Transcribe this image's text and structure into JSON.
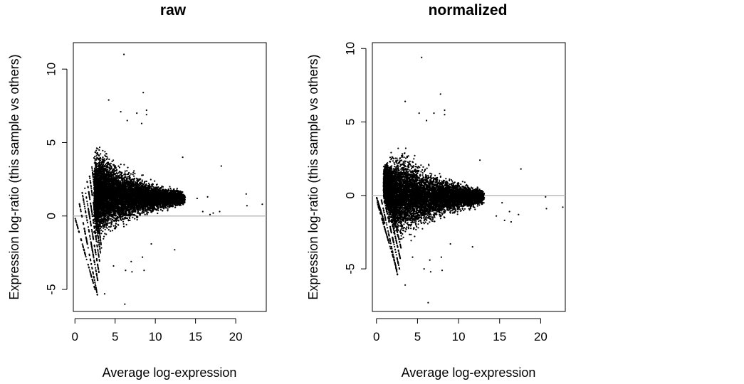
{
  "colors": {
    "points": "#000000",
    "reference_line": "#bbbbbb",
    "background": "#ffffff"
  },
  "chart_data": [
    {
      "type": "scatter",
      "title": "raw",
      "xlabel": "Average log-expression",
      "ylabel": "Expression log-ratio (this sample vs others)",
      "xlim": [
        -0.2,
        23.8
      ],
      "ylim": [
        -6.5,
        11.8
      ],
      "xticks": [
        0,
        5,
        10,
        15,
        20
      ],
      "yticks": [
        -5,
        0,
        5,
        10
      ],
      "reference_line_y": 0,
      "grid": false,
      "legend": "none",
      "density_cloud": [
        {
          "x": 2.5,
          "y": 1.55,
          "half_width": 2.2
        },
        {
          "x": 3,
          "y": 1.5,
          "half_width": 2.4
        },
        {
          "x": 4,
          "y": 1.45,
          "half_width": 2.1
        },
        {
          "x": 5,
          "y": 1.4,
          "half_width": 1.75
        },
        {
          "x": 6,
          "y": 1.35,
          "half_width": 1.5
        },
        {
          "x": 7,
          "y": 1.3,
          "half_width": 1.3
        },
        {
          "x": 8,
          "y": 1.3,
          "half_width": 1.1
        },
        {
          "x": 9,
          "y": 1.25,
          "half_width": 0.95
        },
        {
          "x": 10,
          "y": 1.2,
          "half_width": 0.8
        },
        {
          "x": 11,
          "y": 1.2,
          "half_width": 0.65
        },
        {
          "x": 12,
          "y": 1.2,
          "half_width": 0.55
        },
        {
          "x": 13,
          "y": 1.2,
          "half_width": 0.45
        },
        {
          "x": 13.6,
          "y": 1.2,
          "half_width": 0.3
        }
      ],
      "low_count_streaks": [
        {
          "x": [
            0,
            2.5
          ],
          "y": [
            -0.1,
            -5.0
          ]
        },
        {
          "x": [
            0.5,
            2.8
          ],
          "y": [
            1.0,
            -5.4
          ]
        },
        {
          "x": [
            0.9,
            2.9
          ],
          "y": [
            1.6,
            -4.6
          ]
        },
        {
          "x": [
            1.2,
            3.0
          ],
          "y": [
            2.0,
            -3.9
          ]
        },
        {
          "x": [
            1.5,
            3.1
          ],
          "y": [
            2.4,
            -3.2
          ]
        },
        {
          "x": [
            1.8,
            3.2
          ],
          "y": [
            2.8,
            -2.6
          ]
        },
        {
          "x": [
            2.1,
            3.3
          ],
          "y": [
            3.4,
            -2.2
          ]
        }
      ],
      "outliers": [
        {
          "x": 6.1,
          "y": 11.0
        },
        {
          "x": 8.5,
          "y": 8.4
        },
        {
          "x": 4.2,
          "y": 7.9
        },
        {
          "x": 8.9,
          "y": 7.2
        },
        {
          "x": 8.9,
          "y": 6.9
        },
        {
          "x": 5.7,
          "y": 7.1
        },
        {
          "x": 7.7,
          "y": 7.0
        },
        {
          "x": 6.5,
          "y": 6.5
        },
        {
          "x": 8.3,
          "y": 6.3
        },
        {
          "x": 13.4,
          "y": 4.0
        },
        {
          "x": 18.2,
          "y": 3.4
        },
        {
          "x": 21.3,
          "y": 1.5
        },
        {
          "x": 23.3,
          "y": 0.8
        },
        {
          "x": 21.4,
          "y": 0.7
        },
        {
          "x": 15.2,
          "y": 1.2
        },
        {
          "x": 16.5,
          "y": 1.3
        },
        {
          "x": 15.9,
          "y": 0.3
        },
        {
          "x": 16.8,
          "y": 0.1
        },
        {
          "x": 18.0,
          "y": 0.3
        },
        {
          "x": 17.2,
          "y": 0.2
        },
        {
          "x": 12.4,
          "y": -2.3
        },
        {
          "x": 8.4,
          "y": -2.8
        },
        {
          "x": 7.0,
          "y": -3.1
        },
        {
          "x": 6.3,
          "y": -3.7
        },
        {
          "x": 7.1,
          "y": -3.8
        },
        {
          "x": 8.6,
          "y": -3.7
        },
        {
          "x": 6.2,
          "y": -6.0
        },
        {
          "x": 3.7,
          "y": -5.3
        },
        {
          "x": 4.8,
          "y": -3.4
        },
        {
          "x": 9.5,
          "y": -1.9
        }
      ]
    },
    {
      "type": "scatter",
      "title": "normalized",
      "xlabel": "Average log-expression",
      "ylabel": "Expression log-ratio (this sample vs others)",
      "xlim": [
        -0.5,
        23.0
      ],
      "ylim": [
        -7.9,
        10.4
      ],
      "xticks": [
        0,
        5,
        10,
        15,
        20
      ],
      "yticks": [
        -5,
        0,
        5,
        10
      ],
      "reference_line_y": 0,
      "grid": false,
      "legend": "none",
      "density_cloud": [
        {
          "x": 1,
          "y": 0.8,
          "half_width": 1.0
        },
        {
          "x": 1.5,
          "y": 0.4,
          "half_width": 1.6
        },
        {
          "x": 2,
          "y": 0.1,
          "half_width": 2.1
        },
        {
          "x": 3,
          "y": 0.0,
          "half_width": 2.35
        },
        {
          "x": 4,
          "y": -0.05,
          "half_width": 2.1
        },
        {
          "x": 5,
          "y": -0.1,
          "half_width": 1.8
        },
        {
          "x": 6,
          "y": -0.1,
          "half_width": 1.55
        },
        {
          "x": 7,
          "y": -0.1,
          "half_width": 1.3
        },
        {
          "x": 8,
          "y": -0.1,
          "half_width": 1.1
        },
        {
          "x": 9,
          "y": -0.1,
          "half_width": 0.95
        },
        {
          "x": 10,
          "y": -0.1,
          "half_width": 0.8
        },
        {
          "x": 11,
          "y": -0.1,
          "half_width": 0.65
        },
        {
          "x": 12,
          "y": -0.1,
          "half_width": 0.55
        },
        {
          "x": 13,
          "y": -0.1,
          "half_width": 0.4
        }
      ],
      "low_count_streaks": [
        {
          "x": [
            0,
            1.0
          ],
          "y": [
            -0.1,
            -1.9
          ]
        },
        {
          "x": [
            0.1,
            2.5
          ],
          "y": [
            -0.5,
            -5.1
          ]
        },
        {
          "x": [
            0.6,
            2.6
          ],
          "y": [
            -0.3,
            -5.5
          ]
        },
        {
          "x": [
            0.9,
            2.8
          ],
          "y": [
            -0.2,
            -5.0
          ]
        },
        {
          "x": [
            1.2,
            2.9
          ],
          "y": [
            -0.1,
            -4.3
          ]
        },
        {
          "x": [
            1.5,
            3.0
          ],
          "y": [
            0.0,
            -3.6
          ]
        }
      ],
      "outliers": [
        {
          "x": 5.5,
          "y": 9.4
        },
        {
          "x": 7.8,
          "y": 6.9
        },
        {
          "x": 3.5,
          "y": 6.4
        },
        {
          "x": 8.3,
          "y": 5.8
        },
        {
          "x": 8.3,
          "y": 5.5
        },
        {
          "x": 5.2,
          "y": 5.6
        },
        {
          "x": 7.0,
          "y": 5.6
        },
        {
          "x": 6.1,
          "y": 5.1
        },
        {
          "x": 12.6,
          "y": 2.4
        },
        {
          "x": 17.6,
          "y": 1.8
        },
        {
          "x": 20.6,
          "y": -0.1
        },
        {
          "x": 22.7,
          "y": -0.8
        },
        {
          "x": 20.7,
          "y": -0.9
        },
        {
          "x": 15.3,
          "y": -0.5
        },
        {
          "x": 16.2,
          "y": -1.1
        },
        {
          "x": 15.6,
          "y": -1.7
        },
        {
          "x": 16.4,
          "y": -1.8
        },
        {
          "x": 17.3,
          "y": -1.3
        },
        {
          "x": 14.6,
          "y": -1.4
        },
        {
          "x": 11.7,
          "y": -3.5
        },
        {
          "x": 7.9,
          "y": -4.2
        },
        {
          "x": 6.5,
          "y": -4.4
        },
        {
          "x": 5.8,
          "y": -5.0
        },
        {
          "x": 6.6,
          "y": -5.2
        },
        {
          "x": 8.0,
          "y": -5.1
        },
        {
          "x": 6.3,
          "y": -7.3
        },
        {
          "x": 3.5,
          "y": -6.1
        },
        {
          "x": 4.4,
          "y": -4.2
        },
        {
          "x": 9.0,
          "y": -3.3
        }
      ]
    }
  ]
}
